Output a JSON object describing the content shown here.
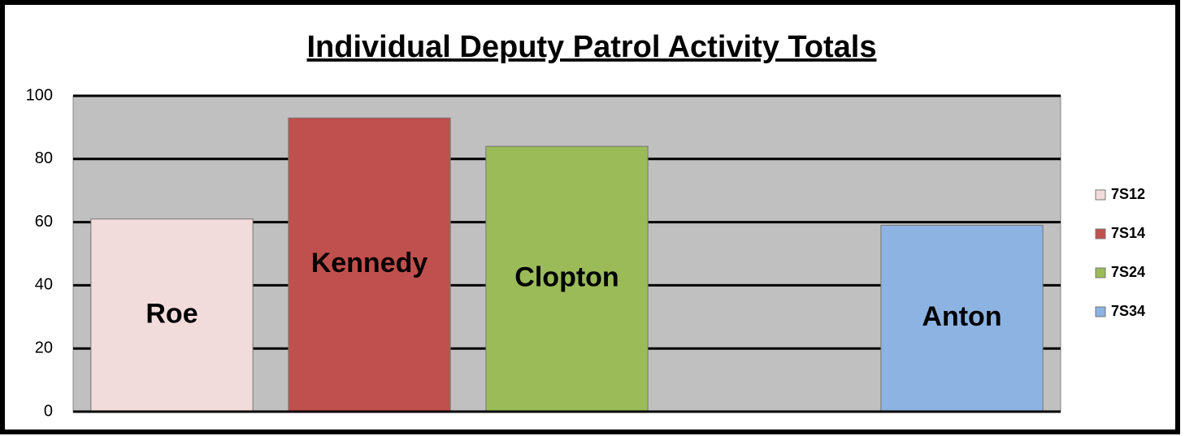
{
  "chart_data": {
    "type": "bar",
    "title": "Individual Deputy Patrol Activity Totals",
    "categories": [
      null,
      null,
      null,
      null,
      null
    ],
    "series": [
      {
        "name": "7S12",
        "label": "Roe",
        "color": "#f2dcdb",
        "values": [
          61,
          null,
          null,
          null,
          null
        ]
      },
      {
        "name": "7S14",
        "label": "Kennedy",
        "color": "#c0504d",
        "values": [
          null,
          93,
          null,
          null,
          null
        ]
      },
      {
        "name": "7S24",
        "label": "Clopton",
        "color": "#9bbb59",
        "values": [
          null,
          null,
          84,
          null,
          null
        ]
      },
      {
        "name": "7S34",
        "label": "Anton",
        "color": "#8db3e2",
        "values": [
          null,
          null,
          null,
          null,
          59
        ]
      }
    ],
    "ylim": [
      0,
      100
    ],
    "yticks": [
      0,
      20,
      40,
      60,
      80,
      100
    ],
    "grid": true,
    "legend": "right"
  }
}
